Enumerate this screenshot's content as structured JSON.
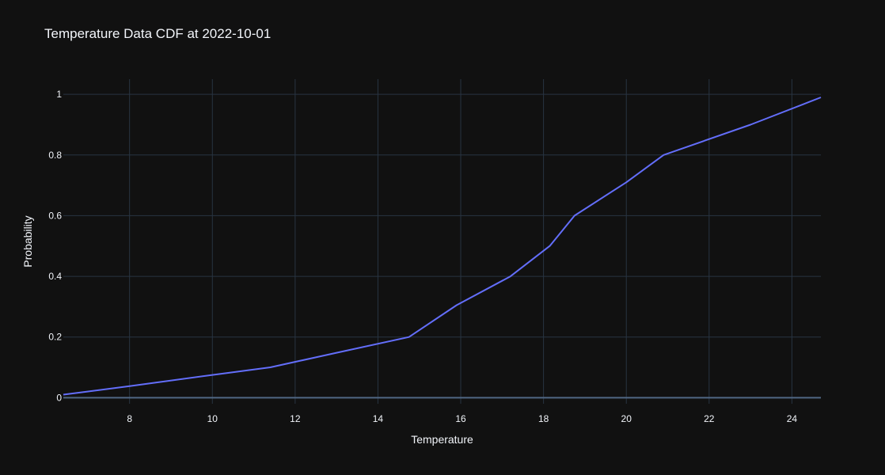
{
  "chart_data": {
    "type": "line",
    "title": "Temperature Data CDF at 2022-10-01",
    "xlabel": "Temperature",
    "ylabel": "Probability",
    "xlim": [
      6.4,
      24.7
    ],
    "ylim": [
      -0.02,
      1.05
    ],
    "xticks": [
      8,
      10,
      12,
      14,
      16,
      18,
      20,
      22,
      24
    ],
    "yticks": [
      0,
      0.2,
      0.4,
      0.6,
      0.8,
      1
    ],
    "ytick_labels": [
      "0",
      "0.2",
      "0.4",
      "0.6",
      "0.8",
      "1"
    ],
    "grid": true,
    "series": [
      {
        "color": "#636efa",
        "x": [
          6.4,
          8.0,
          10.0,
          11.4,
          13.0,
          14.75,
          15.9,
          17.2,
          18.15,
          18.75,
          20.0,
          20.9,
          23.0,
          24.7
        ],
        "y": [
          0.01,
          0.038,
          0.075,
          0.1,
          0.148,
          0.2,
          0.305,
          0.4,
          0.5,
          0.6,
          0.71,
          0.8,
          0.9,
          0.99
        ]
      }
    ],
    "colors": {
      "background": "#111111",
      "grid": "#283442",
      "zeroline": "#506784",
      "text": "#f2f5fa"
    }
  }
}
